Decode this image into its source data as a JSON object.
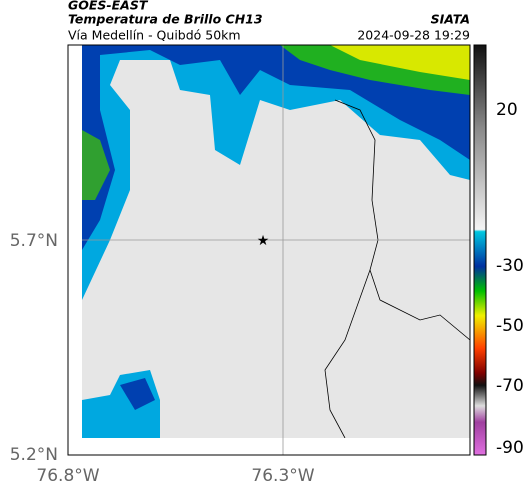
{
  "header": {
    "source": "GOES-EAST",
    "product": "Temperatura de Brillo CH13",
    "route": "Vía Medellín - Quibdó 50km",
    "organization": "SIATA",
    "timestamp": "2024-09-28 19:29"
  },
  "map": {
    "lat_labels": [
      "5.7°N",
      "5.2°N"
    ],
    "lon_labels": [
      "76.8°W",
      "76.3°W"
    ]
  },
  "colorbar": {
    "tick_labels": [
      "20",
      "-30",
      "-50",
      "-70",
      "-90"
    ]
  }
}
